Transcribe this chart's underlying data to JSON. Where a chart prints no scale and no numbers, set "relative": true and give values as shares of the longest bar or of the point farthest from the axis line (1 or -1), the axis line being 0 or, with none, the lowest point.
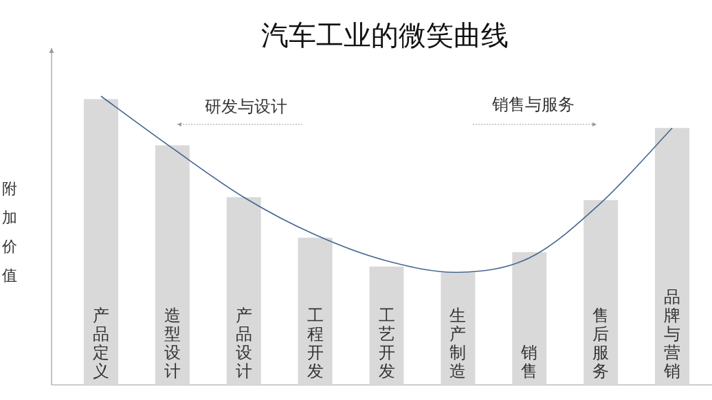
{
  "chart_data": {
    "type": "bar",
    "title": "汽车工业的微笑曲线",
    "ylabel": "附加价值",
    "relative": true,
    "categories": [
      "产品定义",
      "造型设计",
      "产品设计",
      "工程开发",
      "工艺开发",
      "生产制造",
      "销售",
      "售后服务",
      "品牌与营销"
    ],
    "series": [
      {
        "color": "#d9d9d9",
        "values": [
          0.99,
          0.83,
          0.65,
          0.51,
          0.41,
          0.39,
          0.46,
          0.64,
          0.89
        ]
      },
      {
        "type": "line",
        "color": "#44658f",
        "values": [
          1,
          0.82,
          0.65,
          0.52,
          0.43,
          0.39,
          0.44,
          0.63,
          0.89
        ]
      }
    ],
    "annotations": [
      "研发与设计",
      "销售与服务"
    ]
  }
}
